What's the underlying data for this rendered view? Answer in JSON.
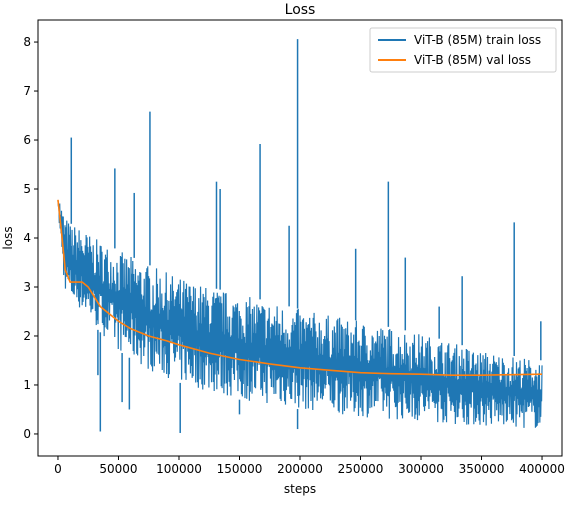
{
  "chart_data": {
    "type": "line",
    "title": "Loss",
    "xlabel": "steps",
    "ylabel": "loss",
    "xlim": [
      -16500,
      416500
    ],
    "ylim": [
      -0.45,
      8.45
    ],
    "xticks": [
      0,
      50000,
      100000,
      150000,
      200000,
      250000,
      300000,
      350000,
      400000
    ],
    "xtick_labels": [
      "0",
      "50000",
      "100000",
      "150000",
      "200000",
      "250000",
      "300000",
      "350000",
      "400000"
    ],
    "yticks": [
      0,
      1,
      2,
      3,
      4,
      5,
      6,
      7,
      8
    ],
    "ytick_labels": [
      "0",
      "1",
      "2",
      "3",
      "4",
      "5",
      "6",
      "7",
      "8"
    ],
    "grid": false,
    "legend_position": "top-right",
    "series": [
      {
        "name": "ViT-B (85M) train loss",
        "color": "#1f77b4",
        "style": "noisy band",
        "band_upper": {
          "x": [
            0,
            5000,
            10000,
            20000,
            30000,
            50000,
            75000,
            100000,
            125000,
            150000,
            175000,
            200000,
            250000,
            300000,
            350000,
            400000
          ],
          "y": [
            4.9,
            4.5,
            4.3,
            4.2,
            4.0,
            3.75,
            3.45,
            3.2,
            3.0,
            2.85,
            2.7,
            2.55,
            2.3,
            2.05,
            1.7,
            1.5
          ]
        },
        "band_lower": {
          "x": [
            0,
            5000,
            10000,
            20000,
            30000,
            50000,
            75000,
            100000,
            125000,
            150000,
            175000,
            200000,
            250000,
            300000,
            350000,
            400000
          ],
          "y": [
            4.6,
            3.0,
            2.7,
            2.5,
            2.2,
            1.7,
            1.3,
            1.05,
            0.85,
            0.7,
            0.6,
            0.5,
            0.35,
            0.25,
            0.15,
            0.1
          ]
        },
        "spikes_high": [
          {
            "x": 11000,
            "y": 6.05
          },
          {
            "x": 47000,
            "y": 5.42
          },
          {
            "x": 63000,
            "y": 4.92
          },
          {
            "x": 76000,
            "y": 6.58
          },
          {
            "x": 131000,
            "y": 5.15
          },
          {
            "x": 134000,
            "y": 5.0
          },
          {
            "x": 167000,
            "y": 5.92
          },
          {
            "x": 191000,
            "y": 4.25
          },
          {
            "x": 198000,
            "y": 8.06
          },
          {
            "x": 246000,
            "y": 3.78
          },
          {
            "x": 273000,
            "y": 5.15
          },
          {
            "x": 287000,
            "y": 3.6
          },
          {
            "x": 315000,
            "y": 2.6
          },
          {
            "x": 334000,
            "y": 3.22
          },
          {
            "x": 377000,
            "y": 4.32
          },
          {
            "x": 399000,
            "y": 2.3
          }
        ],
        "spikes_low": [
          {
            "x": 35000,
            "y": 0.05
          },
          {
            "x": 33000,
            "y": 1.2
          },
          {
            "x": 53000,
            "y": 0.65
          },
          {
            "x": 59000,
            "y": 0.5
          },
          {
            "x": 101000,
            "y": 0.02
          },
          {
            "x": 150000,
            "y": 0.4
          },
          {
            "x": 198000,
            "y": 0.1
          }
        ]
      },
      {
        "name": "ViT-B (85M) val loss",
        "color": "#ff7f0e",
        "x": [
          0,
          3000,
          6000,
          10000,
          15000,
          20000,
          25000,
          30000,
          35000,
          40000,
          50000,
          60000,
          75000,
          90000,
          100000,
          125000,
          150000,
          175000,
          200000,
          225000,
          250000,
          275000,
          300000,
          325000,
          350000,
          375000,
          400000
        ],
        "y": [
          4.78,
          4.1,
          3.35,
          3.1,
          3.1,
          3.1,
          3.0,
          2.8,
          2.6,
          2.5,
          2.3,
          2.15,
          2.0,
          1.9,
          1.82,
          1.65,
          1.52,
          1.43,
          1.35,
          1.3,
          1.25,
          1.23,
          1.22,
          1.2,
          1.2,
          1.21,
          1.22
        ]
      }
    ]
  }
}
